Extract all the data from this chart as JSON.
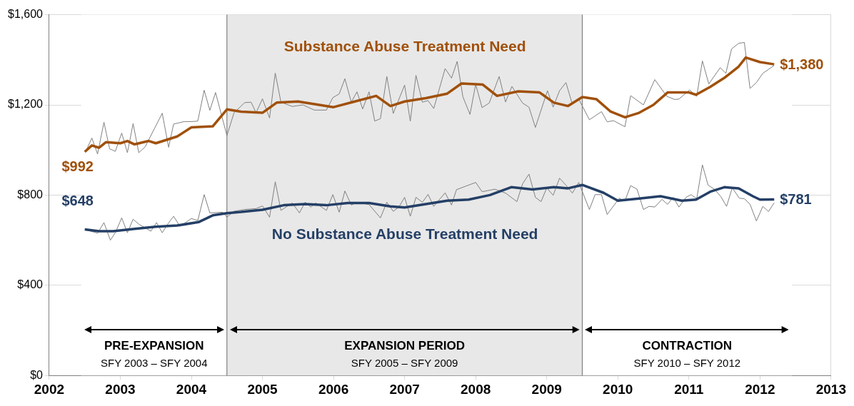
{
  "chart_data": {
    "type": "line",
    "marker": "none",
    "line_style": "solid",
    "grid": true,
    "legend": false,
    "xlim": [
      2002,
      2013
    ],
    "xticks": [
      2002,
      2003,
      2004,
      2005,
      2006,
      2007,
      2008,
      2009,
      2010,
      2011,
      2012,
      2013
    ],
    "ylim": [
      0,
      1600
    ],
    "yticks": [
      {
        "value": 0,
        "label": "$0"
      },
      {
        "value": 400,
        "label": "$400"
      },
      {
        "value": 800,
        "label": "$800"
      },
      {
        "value": 1200,
        "label": "$1,200"
      },
      {
        "value": 1600,
        "label": "$1,600"
      }
    ],
    "series": [
      {
        "color": "#808080",
        "x": [
          2002.51,
          2002.6,
          2002.68,
          2002.77,
          2002.85,
          2002.93,
          2003.02,
          2003.1,
          2003.18,
          2003.26,
          2003.35,
          2003.59,
          2003.68,
          2003.75,
          2003.9,
          2004.0,
          2004.09,
          2004.18,
          2004.26,
          2004.34,
          2004.5,
          2004.6,
          2004.75,
          2004.84,
          2004.91,
          2005.0,
          2005.1,
          2005.18,
          2005.26,
          2005.42,
          2005.57,
          2005.73,
          2005.9,
          2005.99,
          2006.08,
          2006.16,
          2006.25,
          2006.33,
          2006.41,
          2006.5,
          2006.58,
          2006.66,
          2006.75,
          2006.84,
          2007.0,
          2007.08,
          2007.16,
          2007.25,
          2007.33,
          2007.41,
          2007.57,
          2007.66,
          2007.74,
          2007.82,
          2007.92,
          2008.0,
          2008.09,
          2008.19,
          2008.33,
          2008.42,
          2008.51,
          2008.66,
          2008.75,
          2008.84,
          2009.01,
          2009.09,
          2009.18,
          2009.27,
          2009.36,
          2009.45,
          2009.6,
          2009.77,
          2009.85,
          2009.94,
          2010.1,
          2010.18,
          2010.36,
          2010.52,
          2010.69,
          2010.8,
          2010.86,
          2011.01,
          2011.11,
          2011.19,
          2011.28,
          2011.44,
          2011.52,
          2011.6,
          2011.7,
          2011.78,
          2011.86,
          2011.95,
          2012.04,
          2012.2
        ],
        "values": [
          991,
          1053,
          982,
          1123,
          1005,
          994,
          1075,
          988,
          1117,
          988,
          1014,
          1163,
          1012,
          1115,
          1126,
          1126,
          1128,
          1265,
          1176,
          1255,
          1064,
          1165,
          1210,
          1212,
          1165,
          1227,
          1142,
          1341,
          1212,
          1193,
          1200,
          1177,
          1177,
          1232,
          1249,
          1316,
          1212,
          1258,
          1182,
          1258,
          1128,
          1139,
          1326,
          1162,
          1288,
          1128,
          1331,
          1212,
          1219,
          1184,
          1361,
          1319,
          1393,
          1236,
          1158,
          1291,
          1188,
          1208,
          1326,
          1213,
          1282,
          1208,
          1190,
          1100,
          1263,
          1190,
          1263,
          1299,
          1203,
          1226,
          1134,
          1170,
          1125,
          1130,
          1103,
          1241,
          1200,
          1312,
          1238,
          1224,
          1226,
          1266,
          1238,
          1395,
          1293,
          1365,
          1340,
          1448,
          1473,
          1477,
          1273,
          1299,
          1340,
          1375
        ]
      },
      {
        "color": "#808080",
        "x": [
          2002.51,
          2002.68,
          2002.77,
          2002.86,
          2002.93,
          2003.02,
          2003.1,
          2003.18,
          2003.26,
          2003.43,
          2003.51,
          2003.59,
          2003.68,
          2003.75,
          2003.84,
          2004.0,
          2004.09,
          2004.18,
          2004.26,
          2004.44,
          2004.5,
          2004.6,
          2004.75,
          2004.91,
          2005.0,
          2005.1,
          2005.18,
          2005.26,
          2005.42,
          2005.52,
          2005.6,
          2005.68,
          2005.75,
          2005.9,
          2005.99,
          2006.08,
          2006.16,
          2006.25,
          2006.33,
          2006.5,
          2006.66,
          2006.75,
          2006.84,
          2006.92,
          2007.0,
          2007.08,
          2007.16,
          2007.25,
          2007.33,
          2007.41,
          2007.5,
          2007.57,
          2007.66,
          2007.73,
          2008.0,
          2008.09,
          2008.27,
          2008.42,
          2008.58,
          2008.66,
          2008.75,
          2008.84,
          2008.92,
          2009.0,
          2009.09,
          2009.18,
          2009.27,
          2009.36,
          2009.45,
          2009.6,
          2009.68,
          2009.77,
          2009.85,
          2010.02,
          2010.1,
          2010.18,
          2010.27,
          2010.36,
          2010.44,
          2010.52,
          2010.62,
          2010.7,
          2010.78,
          2010.86,
          2010.96,
          2011.03,
          2011.11,
          2011.19,
          2011.27,
          2011.36,
          2011.45,
          2011.53,
          2011.61,
          2011.71,
          2011.78,
          2011.86,
          2011.95,
          2012.04,
          2012.12,
          2012.2
        ],
        "values": [
          647,
          631,
          678,
          600,
          633,
          699,
          633,
          693,
          671,
          640,
          678,
          633,
          677,
          706,
          661,
          696,
          687,
          802,
          721,
          724,
          702,
          728,
          736,
          740,
          752,
          702,
          859,
          732,
          765,
          721,
          768,
          747,
          765,
          732,
          802,
          724,
          818,
          756,
          768,
          758,
          699,
          768,
          728,
          747,
          790,
          706,
          790,
          768,
          803,
          750,
          784,
          810,
          756,
          824,
          856,
          815,
          826,
          809,
          771,
          850,
          893,
          790,
          771,
          832,
          799,
          875,
          844,
          809,
          856,
          736,
          802,
          802,
          714,
          786,
          774,
          842,
          826,
          736,
          750,
          747,
          781,
          759,
          790,
          747,
          790,
          802,
          784,
          934,
          844,
          826,
          793,
          750,
          832,
          786,
          784,
          759,
          685,
          750,
          727,
          766
        ]
      },
      {
        "type": "line",
        "name": "Substance Abuse Treatment Need",
        "color": "#a0500a",
        "x": [
          2002.5,
          2002.6,
          2002.7,
          2002.8,
          2003.0,
          2003.1,
          2003.2,
          2003.4,
          2003.5,
          2003.8,
          2004.0,
          2004.3,
          2004.5,
          2004.7,
          2005.0,
          2005.2,
          2005.5,
          2005.8,
          2006.0,
          2006.3,
          2006.6,
          2006.8,
          2007.0,
          2007.3,
          2007.6,
          2007.8,
          2008.1,
          2008.3,
          2008.6,
          2008.9,
          2009.1,
          2009.3,
          2009.5,
          2009.7,
          2009.9,
          2010.1,
          2010.3,
          2010.5,
          2010.7,
          2011.0,
          2011.1,
          2011.3,
          2011.5,
          2011.7,
          2011.8,
          2012.0,
          2012.2
        ],
        "values": [
          992,
          1020,
          1010,
          1035,
          1030,
          1040,
          1025,
          1040,
          1030,
          1060,
          1100,
          1105,
          1180,
          1170,
          1165,
          1210,
          1215,
          1200,
          1190,
          1215,
          1240,
          1195,
          1215,
          1230,
          1250,
          1295,
          1290,
          1240,
          1260,
          1255,
          1210,
          1195,
          1235,
          1225,
          1170,
          1145,
          1165,
          1200,
          1255,
          1255,
          1245,
          1280,
          1320,
          1370,
          1410,
          1390,
          1380
        ]
      },
      {
        "type": "line",
        "name": "No Substance Abuse Treatment Need",
        "color": "#243f66",
        "x": [
          2002.5,
          2002.7,
          2002.9,
          2003.2,
          2003.5,
          2003.8,
          2004.1,
          2004.3,
          2004.5,
          2004.7,
          2005.0,
          2005.3,
          2005.6,
          2005.9,
          2006.2,
          2006.5,
          2006.8,
          2007.0,
          2007.3,
          2007.6,
          2007.9,
          2008.2,
          2008.5,
          2008.8,
          2009.1,
          2009.3,
          2009.5,
          2009.8,
          2010.0,
          2010.3,
          2010.6,
          2010.9,
          2011.1,
          2011.3,
          2011.5,
          2011.7,
          2011.9,
          2012.0,
          2012.2
        ],
        "values": [
          648,
          640,
          640,
          650,
          660,
          665,
          680,
          710,
          720,
          725,
          735,
          755,
          760,
          755,
          765,
          765,
          750,
          745,
          760,
          775,
          780,
          800,
          835,
          825,
          835,
          830,
          845,
          810,
          775,
          785,
          795,
          775,
          780,
          815,
          835,
          830,
          795,
          780,
          781
        ]
      }
    ],
    "bands": [
      {
        "axis": "x",
        "from": 2002.45,
        "to": 2004.5,
        "label": "PRE-EXPANSION",
        "color": "#ffffff"
      },
      {
        "axis": "x",
        "from": 2004.5,
        "to": 2009.5,
        "label": "EXPANSION PERIOD",
        "color": "#e8e8e8"
      },
      {
        "axis": "x",
        "from": 2009.5,
        "to": 2012.45,
        "label": "CONTRACTION",
        "color": "#ffffff"
      }
    ],
    "ref_lines": [
      {
        "axis": "x",
        "value": 2004.5,
        "color": "#808080"
      },
      {
        "axis": "x",
        "value": 2009.5,
        "color": "#808080"
      }
    ],
    "annotations": [
      "$992",
      "$648",
      "$1,380",
      "$781",
      "SFY 2003 – SFY 2004",
      "SFY 2005 – SFY 2009",
      "SFY 2010 – SFY 2012"
    ]
  }
}
